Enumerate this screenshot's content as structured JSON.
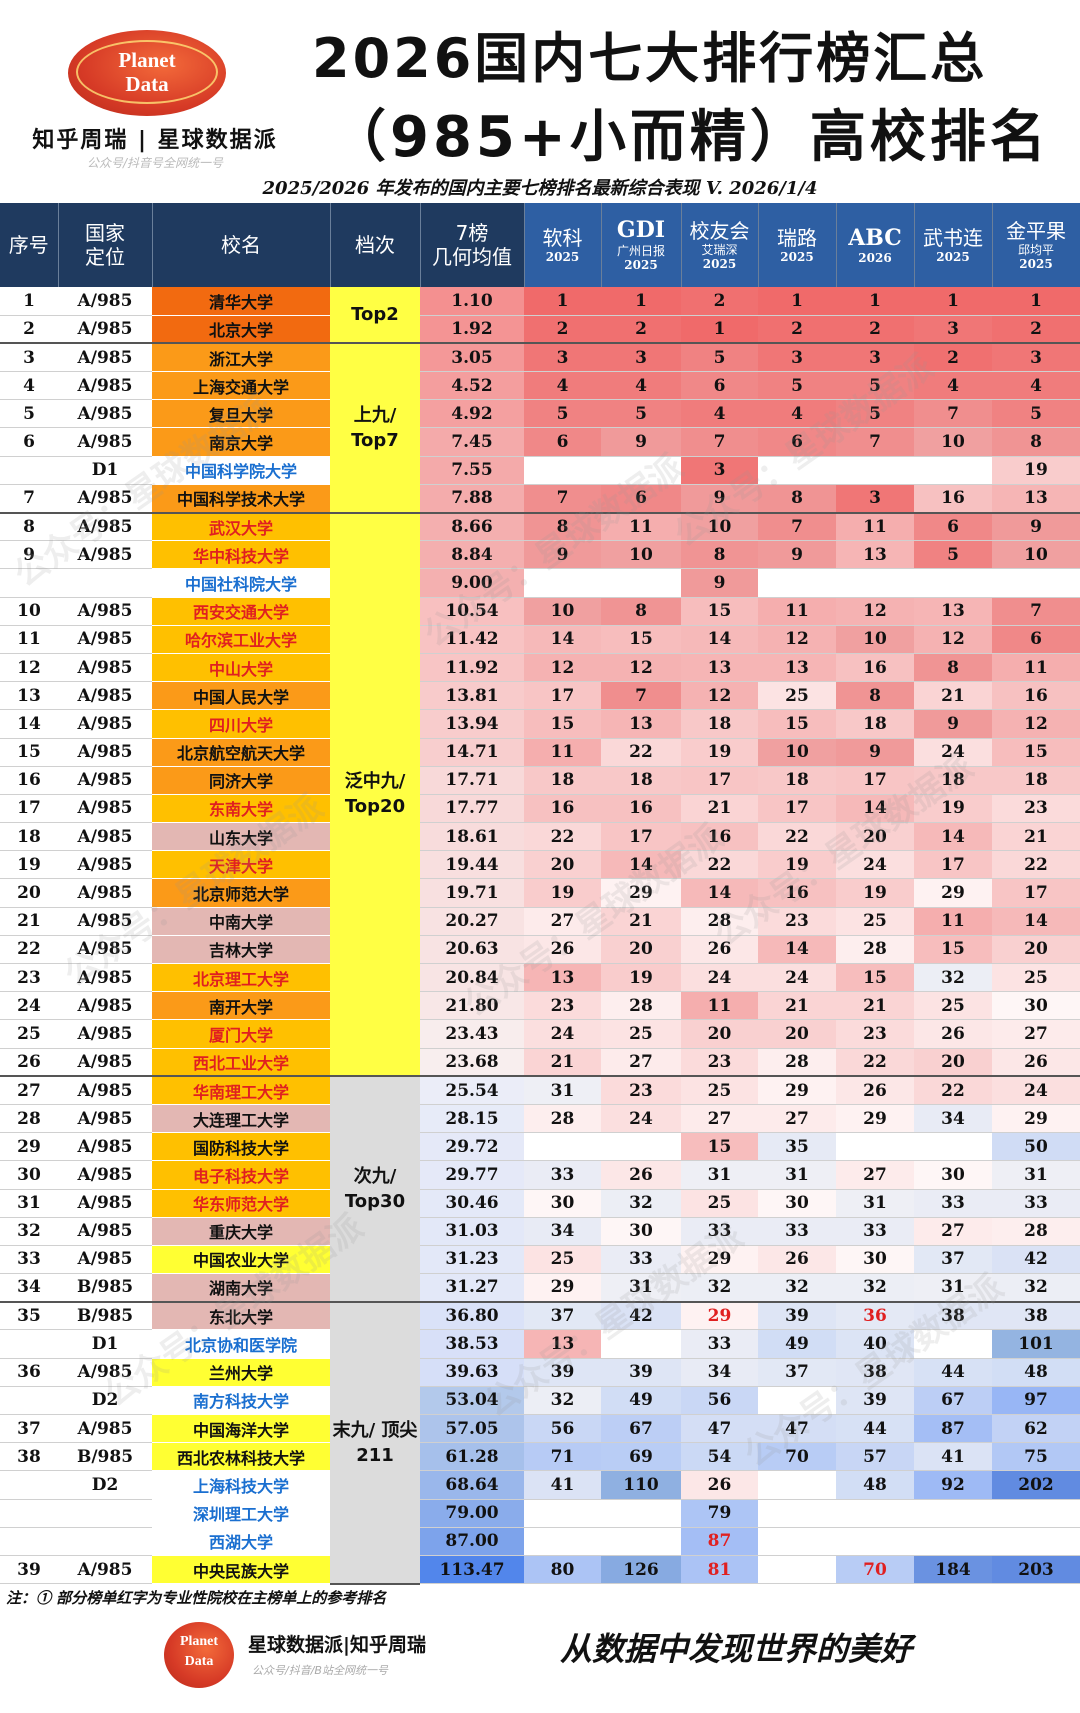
{
  "header": {
    "logo_line1": "Planet",
    "logo_line2": "Data",
    "brand": "知乎周瑞 | 星球数据派",
    "brand_sub": "公众号/抖音号全网统一号",
    "title_line1": "2026国内七大排行榜汇总",
    "title_line2": "（985+小而精）高校排名",
    "subtitle": "2025/2026 年发布的国内主要七榜排名最新综合表现 V. 2026/1/4"
  },
  "table": {
    "headers": {
      "seq": "序号",
      "pos_1": "国家",
      "pos_2": "定位",
      "name": "校名",
      "tier": "档次",
      "geo_1": "7榜",
      "geo_2": "几何均值",
      "r1_name": "软科",
      "r1_sub": "2025",
      "r2_name": "GDI",
      "r2_sub": "广州日报",
      "r2_year": "2025",
      "r3_name": "校友会",
      "r3_sub": "艾瑞深",
      "r3_year": "2025",
      "r4_name": "瑞路",
      "r4_sub": "2025",
      "r5_name": "ABC",
      "r5_sub": "2026",
      "r6_name": "武书连",
      "r6_sub": "2025",
      "r7_name": "金平果",
      "r7_sub": "邱均平",
      "r7_year": "2025"
    },
    "tiers": [
      {
        "label": "Top2",
        "start": 0,
        "span": 2,
        "color": "#ffff44"
      },
      {
        "label": "上九/ Top7",
        "start": 2,
        "span": 6,
        "color": "#ffff44"
      },
      {
        "label": "泛中九/ Top20",
        "start": 8,
        "span": 20,
        "color": "#ffff44"
      },
      {
        "label": "次九/ Top30",
        "start": 28,
        "span": 8,
        "color": "#dcdcdc"
      },
      {
        "label": "末九/ 顶尖211",
        "start": 36,
        "span": 11,
        "color": "#dcdcdc"
      }
    ],
    "rows": [
      {
        "seq": "1",
        "pos": "A/985",
        "name": "清华大学",
        "name_color": "#f26a10",
        "text_color": "#111",
        "geo": "1.10",
        "r": [
          "1",
          "1",
          "2",
          "1",
          "1",
          "1",
          "1"
        ]
      },
      {
        "seq": "2",
        "pos": "A/985",
        "name": "北京大学",
        "name_color": "#f26a10",
        "text_color": "#111",
        "geo": "1.92",
        "r": [
          "2",
          "2",
          "1",
          "2",
          "2",
          "3",
          "2"
        ]
      },
      {
        "seq": "3",
        "pos": "A/985",
        "name": "浙江大学",
        "name_color": "#fb9a18",
        "text_color": "#111",
        "geo": "3.05",
        "r": [
          "3",
          "3",
          "5",
          "3",
          "3",
          "2",
          "3"
        ]
      },
      {
        "seq": "4",
        "pos": "A/985",
        "name": "上海交通大学",
        "name_color": "#fb9a18",
        "text_color": "#111",
        "geo": "4.52",
        "r": [
          "4",
          "4",
          "6",
          "5",
          "5",
          "4",
          "4"
        ]
      },
      {
        "seq": "5",
        "pos": "A/985",
        "name": "复旦大学",
        "name_color": "#fb9a18",
        "text_color": "#111",
        "geo": "4.92",
        "r": [
          "5",
          "5",
          "4",
          "4",
          "5",
          "7",
          "5"
        ]
      },
      {
        "seq": "6",
        "pos": "A/985",
        "name": "南京大学",
        "name_color": "#fb9a18",
        "text_color": "#111",
        "geo": "7.45",
        "r": [
          "6",
          "9",
          "7",
          "6",
          "7",
          "10",
          "8"
        ]
      },
      {
        "seq": "",
        "pos": "D1",
        "name": "中国科学院大学",
        "name_color": "#ffffff",
        "text_color": "#1a6fd0",
        "geo": "7.55",
        "r": [
          "",
          "",
          "3",
          "",
          "",
          "",
          "19"
        ]
      },
      {
        "seq": "7",
        "pos": "A/985",
        "name": "中国科学技术大学",
        "name_color": "#fb9a18",
        "text_color": "#111",
        "geo": "7.88",
        "r": [
          "7",
          "6",
          "9",
          "8",
          "3",
          "16",
          "13"
        ]
      },
      {
        "seq": "8",
        "pos": "A/985",
        "name": "武汉大学",
        "name_color": "#ffc000",
        "text_color": "#e02020",
        "geo": "8.66",
        "r": [
          "8",
          "11",
          "10",
          "7",
          "11",
          "6",
          "9"
        ]
      },
      {
        "seq": "9",
        "pos": "A/985",
        "name": "华中科技大学",
        "name_color": "#ffc000",
        "text_color": "#e02020",
        "geo": "8.84",
        "r": [
          "9",
          "10",
          "8",
          "9",
          "13",
          "5",
          "10"
        ]
      },
      {
        "seq": "",
        "pos": "",
        "name": "中国社科院大学",
        "name_color": "#ffffff",
        "text_color": "#1a6fd0",
        "geo": "9.00",
        "r": [
          "",
          "",
          "9",
          "",
          "",
          "",
          ""
        ]
      },
      {
        "seq": "10",
        "pos": "A/985",
        "name": "西安交通大学",
        "name_color": "#ffc000",
        "text_color": "#e02020",
        "geo": "10.54",
        "r": [
          "10",
          "8",
          "15",
          "11",
          "12",
          "13",
          "7"
        ]
      },
      {
        "seq": "11",
        "pos": "A/985",
        "name": "哈尔滨工业大学",
        "name_color": "#ffc000",
        "text_color": "#e02020",
        "geo": "11.42",
        "r": [
          "14",
          "15",
          "14",
          "12",
          "10",
          "12",
          "6"
        ]
      },
      {
        "seq": "12",
        "pos": "A/985",
        "name": "中山大学",
        "name_color": "#ffc000",
        "text_color": "#e02020",
        "geo": "11.92",
        "r": [
          "12",
          "12",
          "13",
          "13",
          "16",
          "8",
          "11"
        ]
      },
      {
        "seq": "13",
        "pos": "A/985",
        "name": "中国人民大学",
        "name_color": "#fb9a18",
        "text_color": "#111",
        "geo": "13.81",
        "r": [
          "17",
          "7",
          "12",
          "25",
          "8",
          "21",
          "16"
        ]
      },
      {
        "seq": "14",
        "pos": "A/985",
        "name": "四川大学",
        "name_color": "#ffc000",
        "text_color": "#e02020",
        "geo": "13.94",
        "r": [
          "15",
          "13",
          "18",
          "15",
          "18",
          "9",
          "12"
        ]
      },
      {
        "seq": "15",
        "pos": "A/985",
        "name": "北京航空航天大学",
        "name_color": "#fb9a18",
        "text_color": "#111",
        "geo": "14.71",
        "r": [
          "11",
          "22",
          "19",
          "10",
          "9",
          "24",
          "15"
        ]
      },
      {
        "seq": "16",
        "pos": "A/985",
        "name": "同济大学",
        "name_color": "#fb9a18",
        "text_color": "#111",
        "geo": "17.71",
        "r": [
          "18",
          "18",
          "17",
          "18",
          "17",
          "18",
          "18"
        ]
      },
      {
        "seq": "17",
        "pos": "A/985",
        "name": "东南大学",
        "name_color": "#ffc000",
        "text_color": "#e02020",
        "geo": "17.77",
        "r": [
          "16",
          "16",
          "21",
          "17",
          "14",
          "19",
          "23"
        ]
      },
      {
        "seq": "18",
        "pos": "A/985",
        "name": "山东大学",
        "name_color": "#e3b7b3",
        "text_color": "#111",
        "geo": "18.61",
        "r": [
          "22",
          "17",
          "16",
          "22",
          "20",
          "14",
          "21"
        ]
      },
      {
        "seq": "19",
        "pos": "A/985",
        "name": "天津大学",
        "name_color": "#ffc000",
        "text_color": "#e02020",
        "geo": "19.44",
        "r": [
          "20",
          "14",
          "22",
          "19",
          "24",
          "17",
          "22"
        ]
      },
      {
        "seq": "20",
        "pos": "A/985",
        "name": "北京师范大学",
        "name_color": "#fb9a18",
        "text_color": "#111",
        "geo": "19.71",
        "r": [
          "19",
          "29",
          "14",
          "16",
          "19",
          "29",
          "17"
        ]
      },
      {
        "seq": "21",
        "pos": "A/985",
        "name": "中南大学",
        "name_color": "#e3b7b3",
        "text_color": "#111",
        "geo": "20.27",
        "r": [
          "27",
          "21",
          "28",
          "23",
          "25",
          "11",
          "14"
        ]
      },
      {
        "seq": "22",
        "pos": "A/985",
        "name": "吉林大学",
        "name_color": "#e3b7b3",
        "text_color": "#111",
        "geo": "20.63",
        "r": [
          "26",
          "20",
          "26",
          "14",
          "28",
          "15",
          "20"
        ]
      },
      {
        "seq": "23",
        "pos": "A/985",
        "name": "北京理工大学",
        "name_color": "#ffc000",
        "text_color": "#e02020",
        "geo": "20.84",
        "r": [
          "13",
          "19",
          "24",
          "24",
          "15",
          "32",
          "25"
        ]
      },
      {
        "seq": "24",
        "pos": "A/985",
        "name": "南开大学",
        "name_color": "#fb9a18",
        "text_color": "#111",
        "geo": "21.80",
        "r": [
          "23",
          "28",
          "11",
          "21",
          "21",
          "25",
          "30"
        ]
      },
      {
        "seq": "25",
        "pos": "A/985",
        "name": "厦门大学",
        "name_color": "#ffc000",
        "text_color": "#e02020",
        "geo": "23.43",
        "r": [
          "24",
          "25",
          "20",
          "20",
          "23",
          "26",
          "27"
        ]
      },
      {
        "seq": "26",
        "pos": "A/985",
        "name": "西北工业大学",
        "name_color": "#ffc000",
        "text_color": "#e02020",
        "geo": "23.68",
        "r": [
          "21",
          "27",
          "23",
          "28",
          "22",
          "20",
          "26"
        ]
      },
      {
        "seq": "27",
        "pos": "A/985",
        "name": "华南理工大学",
        "name_color": "#ffc000",
        "text_color": "#e02020",
        "geo": "25.54",
        "r": [
          "31",
          "23",
          "25",
          "29",
          "26",
          "22",
          "24"
        ]
      },
      {
        "seq": "28",
        "pos": "A/985",
        "name": "大连理工大学",
        "name_color": "#e3b7b3",
        "text_color": "#111",
        "geo": "28.15",
        "r": [
          "28",
          "24",
          "27",
          "27",
          "29",
          "34",
          "29"
        ]
      },
      {
        "seq": "29",
        "pos": "A/985",
        "name": "国防科技大学",
        "name_color": "#ffc000",
        "text_color": "#111",
        "geo": "29.72",
        "r": [
          "",
          "",
          "15",
          "35",
          "",
          "",
          "50"
        ]
      },
      {
        "seq": "30",
        "pos": "A/985",
        "name": "电子科技大学",
        "name_color": "#ffc000",
        "text_color": "#e02020",
        "geo": "29.77",
        "r": [
          "33",
          "26",
          "31",
          "31",
          "27",
          "30",
          "31"
        ]
      },
      {
        "seq": "31",
        "pos": "A/985",
        "name": "华东师范大学",
        "name_color": "#ffc000",
        "text_color": "#e02020",
        "geo": "30.46",
        "r": [
          "30",
          "32",
          "25",
          "30",
          "31",
          "33",
          "33"
        ]
      },
      {
        "seq": "32",
        "pos": "A/985",
        "name": "重庆大学",
        "name_color": "#e3b7b3",
        "text_color": "#111",
        "geo": "31.03",
        "r": [
          "34",
          "30",
          "33",
          "33",
          "33",
          "27",
          "28"
        ]
      },
      {
        "seq": "33",
        "pos": "A/985",
        "name": "中国农业大学",
        "name_color": "#ffff33",
        "text_color": "#111",
        "geo": "31.23",
        "r": [
          "25",
          "33",
          "29",
          "26",
          "30",
          "37",
          "42"
        ]
      },
      {
        "seq": "34",
        "pos": "B/985",
        "name": "湖南大学",
        "name_color": "#e3b7b3",
        "text_color": "#111",
        "geo": "31.27",
        "r": [
          "29",
          "31",
          "32",
          "32",
          "32",
          "31",
          "32"
        ]
      },
      {
        "seq": "35",
        "pos": "B/985",
        "name": "东北大学",
        "name_color": "#e3b7b3",
        "text_color": "#111",
        "geo": "36.80",
        "r": [
          "37",
          "42",
          "29",
          "39",
          "36",
          "38",
          "38"
        ]
      },
      {
        "seq": "",
        "pos": "D1",
        "name": "北京协和医学院",
        "name_color": "#ffffff",
        "text_color": "#1a6fd0",
        "geo": "38.53",
        "r": [
          "13",
          "",
          "33",
          "49",
          "40",
          "",
          "101"
        ]
      },
      {
        "seq": "36",
        "pos": "A/985",
        "name": "兰州大学",
        "name_color": "#ffff33",
        "text_color": "#111",
        "geo": "39.63",
        "r": [
          "39",
          "39",
          "34",
          "37",
          "38",
          "44",
          "48"
        ]
      },
      {
        "seq": "",
        "pos": "D2",
        "name": "南方科技大学",
        "name_color": "#ffffff",
        "text_color": "#1a6fd0",
        "geo": "53.04",
        "r": [
          "32",
          "49",
          "56",
          "",
          "39",
          "67",
          "97"
        ]
      },
      {
        "seq": "37",
        "pos": "A/985",
        "name": "中国海洋大学",
        "name_color": "#ffff33",
        "text_color": "#111",
        "geo": "57.05",
        "r": [
          "56",
          "67",
          "47",
          "47",
          "44",
          "87",
          "62"
        ]
      },
      {
        "seq": "38",
        "pos": "B/985",
        "name": "西北农林科技大学",
        "name_color": "#ffff33",
        "text_color": "#111",
        "geo": "61.28",
        "r": [
          "71",
          "69",
          "54",
          "70",
          "57",
          "41",
          "75"
        ]
      },
      {
        "seq": "",
        "pos": "D2",
        "name": "上海科技大学",
        "name_color": "#ffffff",
        "text_color": "#1a6fd0",
        "geo": "68.64",
        "r": [
          "41",
          "110",
          "26",
          "",
          "48",
          "92",
          "202"
        ]
      },
      {
        "seq": "",
        "pos": "",
        "name": "深圳理工大学",
        "name_color": "#ffffff",
        "text_color": "#1a6fd0",
        "geo": "79.00",
        "r": [
          "",
          "",
          "79",
          "",
          "",
          "",
          ""
        ]
      },
      {
        "seq": "",
        "pos": "",
        "name": "西湖大学",
        "name_color": "#ffffff",
        "text_color": "#1a6fd0",
        "geo": "87.00",
        "r": [
          "",
          "",
          "87",
          "",
          "",
          "",
          ""
        ]
      },
      {
        "seq": "39",
        "pos": "A/985",
        "name": "中央民族大学",
        "name_color": "#ffff33",
        "text_color": "#111",
        "geo": "113.47",
        "r": [
          "80",
          "126",
          "81",
          "",
          "70",
          "184",
          "203"
        ]
      }
    ],
    "red_cells": [
      [
        36,
        2
      ],
      [
        36,
        4
      ],
      [
        44,
        2
      ],
      [
        45,
        2
      ],
      [
        45,
        4
      ]
    ]
  },
  "note": "注：① 部分榜单红字为专业性院校在主榜单上的参考排名",
  "footer": {
    "logo_line1": "Planet",
    "logo_line2": "Data",
    "brand": "星球数据派|知乎周瑞",
    "brand_sub": "公众号/抖音/B站全网统一号",
    "slogan": "从数据中发现世界的美好"
  },
  "watermark_text": "公众号：星球数据派",
  "colors": {
    "header_bg": "#1f3a5f",
    "rank_header_bg": "#2e5fa3",
    "rank_red_strong": "#f06a6a",
    "rank_blue_strong": "#4a78c0"
  }
}
